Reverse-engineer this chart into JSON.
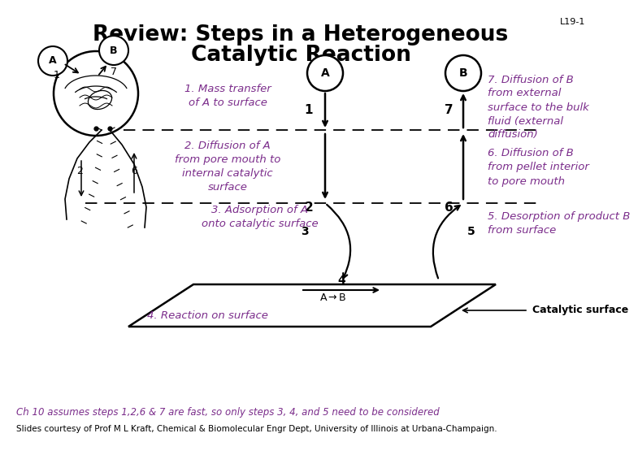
{
  "title_line1": "Review: Steps in a Heterogeneous",
  "title_line2": "Catalytic Reaction",
  "slide_label": "L19-1",
  "bg_color": "#ffffff",
  "purple": "#7B2D8B",
  "black": "#000000",
  "step1": "1. Mass transfer\nof A to surface",
  "step2": "2. Diffusion of A\nfrom pore mouth to\ninternal catalytic\nsurface",
  "step3": "3. Adsorption of A\nonto catalytic surface",
  "step4": "4. Reaction on surface",
  "step5": "5. Desorption of product B\nfrom surface",
  "step6": "6. Diffusion of B\nfrom pellet interior\nto pore mouth",
  "step7": "7. Diffusion of B\nfrom external\nsurface to the bulk\nfluid (external\ndiffusion)",
  "footer1": "Ch 10 assumes steps 1,2,6 & 7 are fast, so only steps 3, 4, and 5 need to be considered",
  "footer2": "Slides courtesy of Prof M L Kraft, Chemical & Biomolecular Engr Dept, University of Illinois at Urbana-Champaign."
}
